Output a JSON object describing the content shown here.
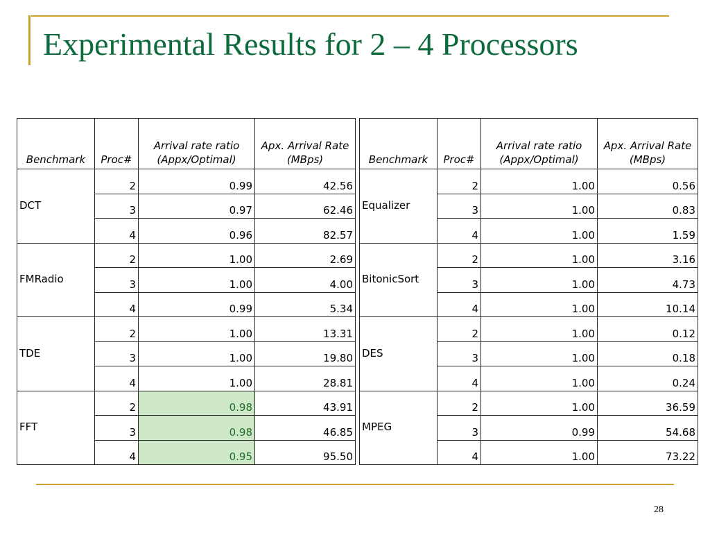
{
  "slide": {
    "title": "Experimental Results for 2 – 4 Processors",
    "page_number": "28"
  },
  "colors": {
    "accent_rule": "#c9a227",
    "title": "#0b6b3a",
    "highlight": "#cfe9c8"
  },
  "tables": [
    {
      "headers": [
        "Benchmark",
        "Proc#",
        "Arrival rate ratio (Appx/Optimal)",
        "Apx. Arrival Rate (MBps)"
      ],
      "groups": [
        {
          "benchmark": "DCT",
          "rows": [
            {
              "proc": "2",
              "ratio": "0.99",
              "rate": "42.56"
            },
            {
              "proc": "3",
              "ratio": "0.97",
              "rate": "62.46"
            },
            {
              "proc": "4",
              "ratio": "0.96",
              "rate": "82.57"
            }
          ]
        },
        {
          "benchmark": "FMRadio",
          "rows": [
            {
              "proc": "2",
              "ratio": "1.00",
              "rate": "2.69"
            },
            {
              "proc": "3",
              "ratio": "1.00",
              "rate": "4.00"
            },
            {
              "proc": "4",
              "ratio": "0.99",
              "rate": "5.34"
            }
          ]
        },
        {
          "benchmark": "TDE",
          "rows": [
            {
              "proc": "2",
              "ratio": "1.00",
              "rate": "13.31"
            },
            {
              "proc": "3",
              "ratio": "1.00",
              "rate": "19.80"
            },
            {
              "proc": "4",
              "ratio": "1.00",
              "rate": "28.81"
            }
          ]
        },
        {
          "benchmark": "FFT",
          "rows": [
            {
              "proc": "2",
              "ratio": "0.98",
              "rate": "43.91",
              "highlight": true
            },
            {
              "proc": "3",
              "ratio": "0.98",
              "rate": "46.85",
              "highlight": true
            },
            {
              "proc": "4",
              "ratio": "0.95",
              "rate": "95.50",
              "highlight": true
            }
          ]
        }
      ]
    },
    {
      "headers": [
        "Benchmark",
        "Proc#",
        "Arrival rate ratio (Appx/Optimal)",
        "Apx. Arrival Rate (MBps)"
      ],
      "groups": [
        {
          "benchmark": "Equalizer",
          "rows": [
            {
              "proc": "2",
              "ratio": "1.00",
              "rate": "0.56"
            },
            {
              "proc": "3",
              "ratio": "1.00",
              "rate": "0.83"
            },
            {
              "proc": "4",
              "ratio": "1.00",
              "rate": "1.59"
            }
          ]
        },
        {
          "benchmark": "BitonicSort",
          "rows": [
            {
              "proc": "2",
              "ratio": "1.00",
              "rate": "3.16"
            },
            {
              "proc": "3",
              "ratio": "1.00",
              "rate": "4.73"
            },
            {
              "proc": "4",
              "ratio": "1.00",
              "rate": "10.14"
            }
          ]
        },
        {
          "benchmark": "DES",
          "rows": [
            {
              "proc": "2",
              "ratio": "1.00",
              "rate": "0.12"
            },
            {
              "proc": "3",
              "ratio": "1.00",
              "rate": "0.18"
            },
            {
              "proc": "4",
              "ratio": "1.00",
              "rate": "0.24"
            }
          ]
        },
        {
          "benchmark": "MPEG",
          "rows": [
            {
              "proc": "2",
              "ratio": "1.00",
              "rate": "36.59"
            },
            {
              "proc": "3",
              "ratio": "0.99",
              "rate": "54.68"
            },
            {
              "proc": "4",
              "ratio": "1.00",
              "rate": "73.22"
            }
          ]
        }
      ]
    }
  ]
}
